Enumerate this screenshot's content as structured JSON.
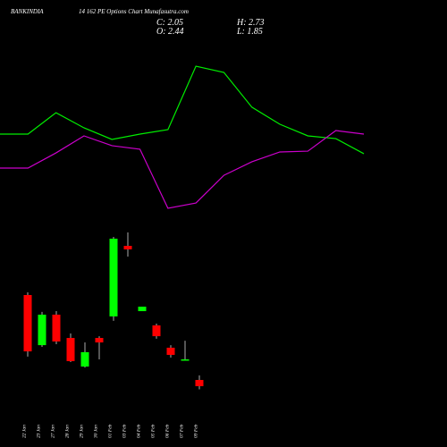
{
  "chart_data": [
    {
      "type": "candlestick",
      "title": "BANKINDIA",
      "subtitle": "14 162 PE Options Chart Munafasutra.com",
      "annotations": [
        "C: 2.05",
        "O: 2.44",
        "H: 2.73",
        "L: 1.85"
      ],
      "categories": [
        "22 Jan",
        "23 Jan",
        "27 Jan",
        "28 Jan",
        "29 Jan",
        "30 Jan",
        "01 Feb",
        "03 Feb",
        "04 Feb",
        "05 Feb",
        "06 Feb",
        "07 Feb",
        "09 Feb"
      ],
      "open": [
        7.76,
        4.62,
        6.53,
        5.07,
        3.28,
        5.07,
        6.42,
        10.84,
        6.75,
        5.86,
        4.46,
        3.67,
        2.44
      ],
      "high": [
        7.93,
        6.7,
        6.75,
        5.35,
        4.79,
        5.18,
        11.4,
        11.68,
        7.03,
        5.97,
        4.62,
        4.9,
        2.73
      ],
      "low": [
        3.9,
        4.51,
        4.68,
        3.56,
        3.22,
        3.73,
        6.14,
        10.17,
        6.75,
        5.02,
        3.84,
        3.67,
        1.85
      ],
      "close": [
        4.23,
        6.53,
        4.85,
        3.62,
        4.18,
        4.79,
        11.29,
        10.62,
        7.03,
        5.18,
        4.01,
        3.73,
        2.05
      ],
      "ylim": [
        1.6,
        12.24
      ],
      "up_color": "#00ff00",
      "down_color": "#ff0000"
    },
    {
      "type": "line",
      "categories": [
        null,
        null,
        null,
        null,
        null,
        null,
        null,
        null,
        null,
        null,
        null,
        null,
        null,
        null
      ],
      "series": [
        {
          "color": "#00ee00",
          "values": [
            50,
            50,
            63.3,
            53.9,
            46.7,
            50,
            52.8,
            92.2,
            88.3,
            66.7,
            56.1,
            48.9,
            47.2,
            37.8
          ]
        },
        {
          "color": "#cc00cc",
          "values": [
            28.9,
            28.9,
            38.3,
            48.9,
            42.8,
            40.6,
            3.9,
            7.2,
            24.4,
            32.8,
            38.9,
            39.4,
            52.2,
            50
          ]
        }
      ],
      "ylim": [
        0,
        100
      ]
    }
  ]
}
